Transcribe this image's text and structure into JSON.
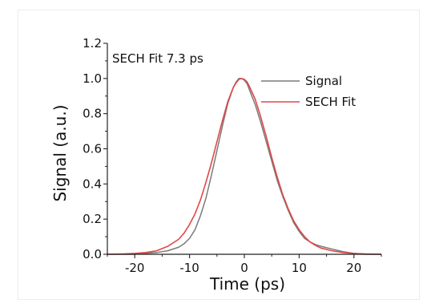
{
  "chart_data": {
    "type": "line",
    "title": "",
    "annotation": "SECH Fit 7.3 ps",
    "xlabel": "Time (ps)",
    "ylabel": "Signal (a.u.)",
    "xlim": [
      -25,
      25
    ],
    "ylim": [
      0,
      1.2
    ],
    "xticks": [
      "-20",
      "-10",
      "0",
      "10",
      "20"
    ],
    "yticks": [
      "0.0",
      "0.2",
      "0.4",
      "0.6",
      "0.8",
      "1.0",
      "1.2"
    ],
    "legend_position": "top-right",
    "grid": false,
    "series": [
      {
        "name": "Signal",
        "color": "#7a7a7a",
        "x": [
          -25,
          -22,
          -20,
          -18,
          -16,
          -14,
          -12,
          -11,
          -10,
          -9,
          -8,
          -7,
          -6,
          -5,
          -4,
          -3,
          -2,
          -1.5,
          -1,
          -0.5,
          0,
          0.5,
          1,
          2,
          3,
          4,
          5,
          6,
          7,
          8,
          9,
          10,
          11,
          12,
          13,
          14,
          16,
          18,
          20,
          22,
          25
        ],
        "y": [
          0.0,
          0.0,
          0.0,
          0.005,
          0.01,
          0.02,
          0.04,
          0.06,
          0.09,
          0.14,
          0.22,
          0.32,
          0.45,
          0.59,
          0.73,
          0.86,
          0.95,
          0.98,
          1.0,
          1.0,
          0.99,
          0.97,
          0.93,
          0.85,
          0.75,
          0.64,
          0.53,
          0.42,
          0.33,
          0.25,
          0.18,
          0.13,
          0.09,
          0.07,
          0.055,
          0.045,
          0.03,
          0.015,
          0.005,
          0.0,
          0.0
        ]
      },
      {
        "name": "SECH Fit",
        "color": "#e04848",
        "x": [
          -25,
          -22,
          -20,
          -18,
          -16,
          -14,
          -12,
          -11,
          -10,
          -9,
          -8,
          -7,
          -6,
          -5,
          -4,
          -3,
          -2,
          -1.5,
          -1,
          -0.5,
          0,
          0.5,
          1,
          2,
          3,
          4,
          5,
          6,
          7,
          8,
          9,
          10,
          11,
          12,
          13,
          14,
          16,
          18,
          20,
          22,
          25
        ],
        "y": [
          0.0,
          0.002,
          0.005,
          0.01,
          0.02,
          0.045,
          0.085,
          0.12,
          0.17,
          0.23,
          0.31,
          0.41,
          0.52,
          0.64,
          0.76,
          0.87,
          0.95,
          0.975,
          0.995,
          1.0,
          0.995,
          0.98,
          0.95,
          0.88,
          0.78,
          0.67,
          0.55,
          0.44,
          0.34,
          0.26,
          0.19,
          0.14,
          0.1,
          0.07,
          0.05,
          0.035,
          0.02,
          0.01,
          0.005,
          0.002,
          0.0
        ]
      }
    ]
  }
}
